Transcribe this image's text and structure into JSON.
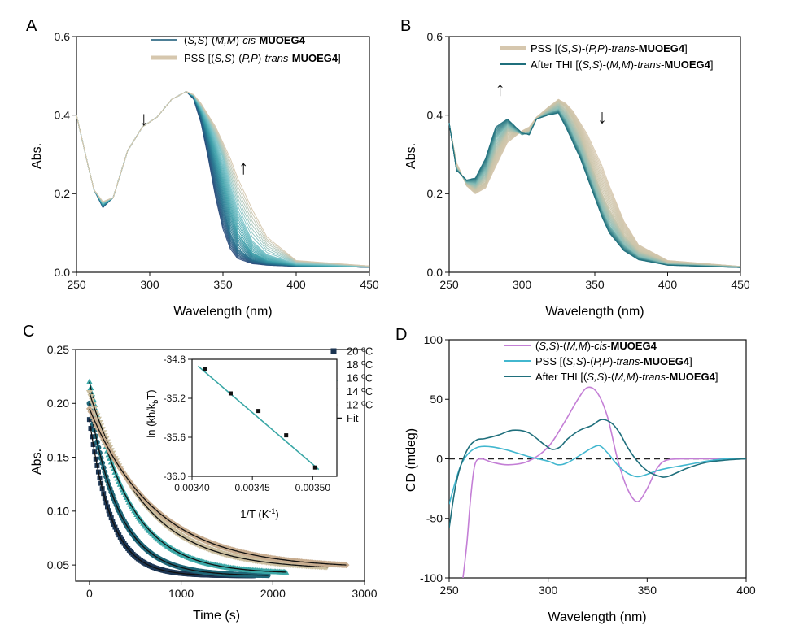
{
  "panels": [
    {
      "letter": "A"
    },
    {
      "letter": "B"
    },
    {
      "letter": "C"
    },
    {
      "letter": "D"
    }
  ],
  "chart_data": [
    {
      "panel": "A",
      "type": "line",
      "xlabel": "Wavelength (nm)",
      "ylabel": "Abs.",
      "xlim": [
        250,
        450
      ],
      "ylim": [
        0,
        0.6
      ],
      "xticks": [
        250,
        300,
        350,
        400,
        450
      ],
      "yticks": [
        0.0,
        0.2,
        0.4,
        0.6
      ],
      "ytick_labels": [
        "0.0",
        "0.2",
        "0.4",
        "0.6"
      ],
      "legend": [
        {
          "prefix": "(",
          "italic1": "S,S",
          "mid1": ")-(",
          "italic2": "M,M",
          "mid2": ")-",
          "italic3": "cis",
          "mid3": "-",
          "bold": "MUOEG4",
          "suffix": "",
          "color": "#4d7f96"
        },
        {
          "prefix": "PSS [(",
          "italic1": "S,S",
          "mid1": ")-(",
          "italic2": "P,P",
          "mid2": ")-",
          "italic3": "trans",
          "mid3": "-",
          "bold": "MUOEG4",
          "suffix": "]",
          "color": "#d6c7ae"
        }
      ],
      "series": [
        {
          "color": "#2a4a7a",
          "x": [
            250,
            258,
            262,
            268,
            275,
            285,
            295,
            305,
            315,
            325,
            330,
            335,
            340,
            345,
            350,
            355,
            360,
            370,
            380,
            400,
            450
          ],
          "y": [
            0.4,
            0.27,
            0.21,
            0.165,
            0.19,
            0.31,
            0.37,
            0.395,
            0.44,
            0.46,
            0.44,
            0.38,
            0.29,
            0.19,
            0.11,
            0.06,
            0.035,
            0.022,
            0.018,
            0.015,
            0.013
          ]
        },
        {
          "color": "#23718c",
          "x": [
            250,
            258,
            262,
            268,
            275,
            285,
            295,
            305,
            315,
            325,
            330,
            335,
            340,
            345,
            350,
            355,
            360,
            370,
            380,
            400,
            450
          ],
          "y": [
            0.4,
            0.27,
            0.21,
            0.168,
            0.19,
            0.31,
            0.37,
            0.395,
            0.44,
            0.46,
            0.445,
            0.4,
            0.33,
            0.25,
            0.17,
            0.1,
            0.06,
            0.032,
            0.022,
            0.016,
            0.013
          ]
        },
        {
          "color": "#3a9ea8",
          "x": [
            250,
            258,
            262,
            268,
            275,
            285,
            295,
            305,
            315,
            325,
            330,
            335,
            340,
            345,
            350,
            355,
            360,
            370,
            380,
            400,
            450
          ],
          "y": [
            0.4,
            0.27,
            0.21,
            0.172,
            0.19,
            0.31,
            0.37,
            0.395,
            0.44,
            0.46,
            0.448,
            0.41,
            0.36,
            0.3,
            0.23,
            0.16,
            0.1,
            0.05,
            0.03,
            0.018,
            0.014
          ]
        },
        {
          "color": "#79c3c8",
          "x": [
            250,
            258,
            262,
            268,
            275,
            285,
            295,
            305,
            315,
            325,
            330,
            335,
            340,
            345,
            350,
            355,
            360,
            370,
            380,
            400,
            450
          ],
          "y": [
            0.4,
            0.27,
            0.21,
            0.176,
            0.19,
            0.31,
            0.37,
            0.395,
            0.44,
            0.46,
            0.45,
            0.42,
            0.385,
            0.34,
            0.29,
            0.22,
            0.16,
            0.08,
            0.045,
            0.022,
            0.015
          ]
        },
        {
          "color": "#d6c7ae",
          "x": [
            250,
            258,
            262,
            268,
            275,
            285,
            295,
            305,
            315,
            325,
            330,
            335,
            340,
            345,
            350,
            355,
            360,
            370,
            380,
            400,
            450
          ],
          "y": [
            0.4,
            0.27,
            0.21,
            0.18,
            0.19,
            0.31,
            0.37,
            0.395,
            0.44,
            0.46,
            0.452,
            0.43,
            0.4,
            0.37,
            0.33,
            0.29,
            0.24,
            0.16,
            0.09,
            0.03,
            0.016
          ]
        }
      ],
      "annotations": [
        {
          "text": "↓",
          "x": 296,
          "y": 0.375
        },
        {
          "text": "↑",
          "x": 364,
          "y": 0.25
        }
      ]
    },
    {
      "panel": "B",
      "type": "line",
      "xlabel": "Wavelength (nm)",
      "ylabel": "Abs.",
      "xlim": [
        250,
        450
      ],
      "ylim": [
        0,
        0.6
      ],
      "xticks": [
        250,
        300,
        350,
        400,
        450
      ],
      "yticks": [
        0.0,
        0.2,
        0.4,
        0.6
      ],
      "ytick_labels": [
        "0.0",
        "0.2",
        "0.4",
        "0.6"
      ],
      "legend": [
        {
          "prefix": "PSS [(",
          "italic1": "S,S",
          "mid1": ")-(",
          "italic2": "P,P",
          "mid2": ")-",
          "italic3": "trans",
          "mid3": "-",
          "bold": "MUOEG4",
          "suffix": "]",
          "color": "#d6c7ae"
        },
        {
          "prefix": "After THI [(",
          "italic1": "S,S",
          "mid1": ")-(",
          "italic2": "M,M",
          "mid2": ")-",
          "italic3": "trans",
          "mid3": "-",
          "bold": "MUOEG4",
          "suffix": "]",
          "color": "#1f6f7c"
        }
      ],
      "series": [
        {
          "color": "#d6c7ae",
          "x": [
            250,
            255,
            262,
            268,
            275,
            282,
            290,
            300,
            305,
            310,
            318,
            325,
            330,
            335,
            340,
            345,
            350,
            355,
            360,
            370,
            380,
            400,
            450
          ],
          "y": [
            0.38,
            0.28,
            0.22,
            0.2,
            0.215,
            0.27,
            0.33,
            0.36,
            0.37,
            0.395,
            0.42,
            0.44,
            0.43,
            0.41,
            0.38,
            0.35,
            0.31,
            0.27,
            0.22,
            0.13,
            0.07,
            0.03,
            0.015
          ]
        },
        {
          "color": "#c8c3a8",
          "x": [
            250,
            255,
            262,
            268,
            275,
            282,
            290,
            300,
            305,
            310,
            318,
            325,
            330,
            335,
            340,
            345,
            350,
            355,
            360,
            370,
            380,
            400,
            450
          ],
          "y": [
            0.38,
            0.27,
            0.225,
            0.21,
            0.23,
            0.3,
            0.355,
            0.355,
            0.36,
            0.39,
            0.415,
            0.435,
            0.42,
            0.39,
            0.35,
            0.3,
            0.25,
            0.2,
            0.16,
            0.095,
            0.055,
            0.025,
            0.014
          ]
        },
        {
          "color": "#7fb9b4",
          "x": [
            250,
            255,
            262,
            268,
            275,
            282,
            290,
            300,
            305,
            310,
            318,
            325,
            330,
            335,
            340,
            345,
            350,
            355,
            360,
            370,
            380,
            400,
            450
          ],
          "y": [
            0.38,
            0.265,
            0.23,
            0.225,
            0.26,
            0.34,
            0.375,
            0.35,
            0.355,
            0.39,
            0.405,
            0.415,
            0.39,
            0.35,
            0.31,
            0.26,
            0.21,
            0.16,
            0.12,
            0.07,
            0.04,
            0.02,
            0.013
          ]
        },
        {
          "color": "#1f6f7c",
          "x": [
            250,
            255,
            262,
            268,
            275,
            282,
            290,
            300,
            305,
            310,
            318,
            325,
            330,
            335,
            340,
            345,
            350,
            355,
            360,
            370,
            380,
            400,
            450
          ],
          "y": [
            0.38,
            0.26,
            0.235,
            0.24,
            0.29,
            0.37,
            0.39,
            0.355,
            0.35,
            0.39,
            0.4,
            0.405,
            0.37,
            0.33,
            0.29,
            0.24,
            0.19,
            0.14,
            0.1,
            0.055,
            0.032,
            0.018,
            0.012
          ]
        }
      ],
      "annotations": [
        {
          "text": "↑",
          "x": 285,
          "y": 0.45
        },
        {
          "text": "↓",
          "x": 355,
          "y": 0.38
        }
      ]
    },
    {
      "panel": "C",
      "type": "scatter",
      "xlabel": "Time (s)",
      "ylabel": "Abs.",
      "xlim": [
        -150,
        3000
      ],
      "ylim": [
        0.035,
        0.25
      ],
      "xticks": [
        0,
        1000,
        2000,
        3000
      ],
      "yticks": [
        0.05,
        0.1,
        0.15,
        0.2,
        0.25
      ],
      "ytick_labels": [
        "0.05",
        "0.10",
        "0.15",
        "0.20",
        "0.25"
      ],
      "legend": [
        {
          "label": "20 ºC",
          "marker": "square",
          "color": "#1c3552"
        },
        {
          "label": "18 ºC",
          "marker": "circle",
          "color": "#1f6677"
        },
        {
          "label": "16 ºC",
          "marker": "triangle-up",
          "color": "#3aa7a6"
        },
        {
          "label": "14 ºC",
          "marker": "triangle-down",
          "color": "#cbbfa0"
        },
        {
          "label": "12 ºC",
          "marker": "diamond",
          "color": "#c8ad90"
        },
        {
          "label": "Fit",
          "marker": "line",
          "color": "#111111"
        }
      ],
      "series": [
        {
          "name": "20 ºC",
          "color": "#1c3552",
          "a0": 0.185,
          "tau": 240,
          "inf": 0.04,
          "tmax": 1800
        },
        {
          "name": "18 ºC",
          "color": "#1f6677",
          "a0": 0.2,
          "tau": 330,
          "inf": 0.04,
          "tmax": 1950
        },
        {
          "name": "16 ºC",
          "color": "#3aa7a6",
          "a0": 0.22,
          "tau": 440,
          "inf": 0.042,
          "tmax": 2150
        },
        {
          "name": "14 ºC",
          "color": "#cbbfa0",
          "a0": 0.21,
          "tau": 600,
          "inf": 0.046,
          "tmax": 2600
        },
        {
          "name": "12 ºC",
          "color": "#c8ad90",
          "a0": 0.195,
          "tau": 720,
          "inf": 0.047,
          "tmax": 2800
        }
      ],
      "inset": {
        "type": "scatter",
        "xlabel": "1/T (K",
        "xlabel_sup": "-1",
        "xlabel_end": ")",
        "ylabel": "ln (kh/k",
        "ylabel_sub": "b",
        "ylabel_end": "T)",
        "xlim": [
          0.0034,
          0.00352
        ],
        "ylim": [
          -36.0,
          -34.8
        ],
        "xticks": [
          0.0034,
          0.00345,
          0.0035
        ],
        "xtick_labels": [
          "0.00340",
          "0.00345",
          "0.00350"
        ],
        "yticks": [
          -36.0,
          -35.6,
          -35.2,
          -34.8
        ],
        "ytick_labels": [
          "-36.0",
          "-35.6",
          "-35.2",
          "-34.8"
        ],
        "points": [
          [
            0.003411,
            -34.9
          ],
          [
            0.003432,
            -35.15
          ],
          [
            0.003455,
            -35.33
          ],
          [
            0.003478,
            -35.58
          ],
          [
            0.003502,
            -35.91
          ]
        ],
        "fit": [
          [
            0.003405,
            -34.87
          ],
          [
            0.003505,
            -35.93
          ]
        ],
        "fit_color": "#3aa7a6"
      }
    },
    {
      "panel": "D",
      "type": "line",
      "xlabel": "Wavelength (nm)",
      "ylabel": "CD (mdeg)",
      "xlim": [
        250,
        400
      ],
      "ylim": [
        -100,
        100
      ],
      "xticks": [
        250,
        300,
        350,
        400
      ],
      "yticks": [
        -100,
        -50,
        0,
        50,
        100
      ],
      "ytick_labels": [
        "-100",
        "-50",
        "0",
        "50",
        "100"
      ],
      "legend": [
        {
          "prefix": "(",
          "italic1": "S,S",
          "mid1": ")-(",
          "italic2": "M,M",
          "mid2": ")-",
          "italic3": "cis",
          "mid3": "-",
          "bold": "MUOEG4",
          "suffix": "",
          "color": "#c47fd6"
        },
        {
          "prefix": "PSS [(",
          "italic1": "S,S",
          "mid1": ")-(",
          "italic2": "P,P",
          "mid2": ")-",
          "italic3": "trans",
          "mid3": "-",
          "bold": "MUOEG4",
          "suffix": "]",
          "color": "#42b7cf"
        },
        {
          "prefix": "After THI [(",
          "italic1": "S,S",
          "mid1": ")-(",
          "italic2": "M,M",
          "mid2": ")-",
          "italic3": "trans",
          "mid3": "-",
          "bold": "MUOEG4",
          "suffix": "]",
          "color": "#1f6f7c"
        }
      ],
      "series": [
        {
          "color": "#c47fd6",
          "x": [
            257,
            259,
            261,
            263,
            266,
            272,
            280,
            290,
            300,
            308,
            315,
            320,
            325,
            330,
            335,
            340,
            345,
            350,
            355,
            360,
            370,
            380,
            400
          ],
          "y": [
            -100,
            -70,
            -30,
            -5,
            0,
            -3,
            -5,
            -2,
            10,
            30,
            50,
            60,
            55,
            35,
            0,
            -25,
            -36,
            -25,
            -8,
            -1,
            0,
            0,
            0
          ]
        },
        {
          "color": "#42b7cf",
          "x": [
            250,
            253,
            256,
            260,
            265,
            272,
            280,
            290,
            300,
            305,
            310,
            318,
            322,
            326,
            330,
            335,
            340,
            345,
            350,
            355,
            360,
            370,
            380,
            390,
            400
          ],
          "y": [
            -38,
            -20,
            -5,
            5,
            10,
            10,
            7,
            2,
            -2,
            -5,
            -3,
            5,
            9,
            11,
            5,
            -5,
            -12,
            -15,
            -13,
            -10,
            -8,
            -5,
            -2,
            0,
            0
          ]
        },
        {
          "color": "#1f6f7c",
          "x": [
            250,
            253,
            256,
            260,
            264,
            268,
            275,
            282,
            290,
            298,
            302,
            306,
            310,
            316,
            322,
            327,
            332,
            336,
            340,
            345,
            350,
            355,
            360,
            370,
            380,
            390,
            400
          ],
          "y": [
            -58,
            -25,
            -5,
            10,
            16,
            17,
            20,
            24,
            22,
            12,
            8,
            10,
            17,
            24,
            28,
            33,
            30,
            22,
            10,
            -2,
            -10,
            -14,
            -15,
            -8,
            -3,
            -1,
            0
          ]
        }
      ],
      "zero_line": true
    }
  ]
}
